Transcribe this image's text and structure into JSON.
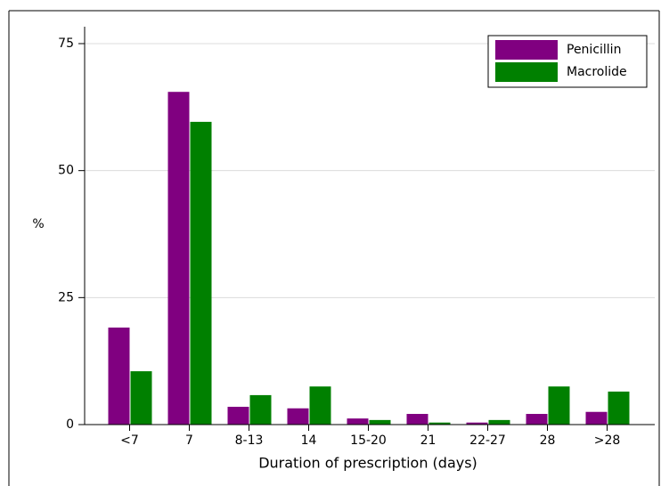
{
  "chart_data": {
    "type": "bar",
    "y_label": "%",
    "x_label": "Duration of prescription (days)",
    "categories": [
      "<7",
      "7",
      "8-13",
      "14",
      "15-20",
      "21",
      "22-27",
      "28",
      ">28"
    ],
    "series": [
      {
        "name": "Penicillin",
        "color": "#800080",
        "values": [
          19.1,
          65.5,
          3.5,
          3.2,
          1.2,
          2.1,
          0.4,
          2.1,
          2.5
        ]
      },
      {
        "name": "Macrolide",
        "color": "#008000",
        "values": [
          10.5,
          59.6,
          5.8,
          7.5,
          0.9,
          0.4,
          0.9,
          7.5,
          6.5
        ]
      }
    ],
    "ylim": [
      0,
      75
    ],
    "yticks": [
      0,
      25,
      50,
      75
    ],
    "grid": true,
    "legend": "top-right"
  }
}
